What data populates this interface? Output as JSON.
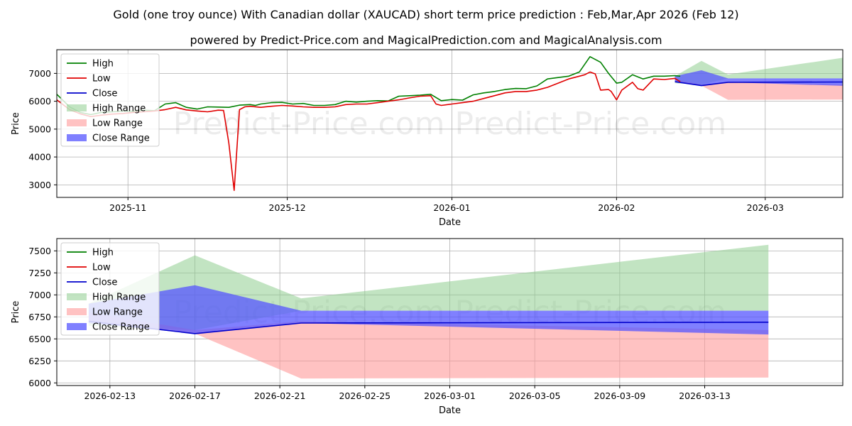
{
  "title": "Gold (one troy ounce) With Canadian dollar (XAUCAD) short term price prediction : Feb,Mar,Apr 2026 (Feb 12)",
  "subtitle": "powered by Predict-Price.com and MagicalPrediction.com and MagicalAnalysis.com",
  "watermark": "Predict-Price.com",
  "colors": {
    "high": "#008000",
    "low": "#e00000",
    "close": "#0000cc",
    "high_range": "#8fce8f",
    "low_range": "#ff9999",
    "close_range": "#5555ff",
    "grid": "#b0b0b0"
  },
  "chart_data": [
    {
      "type": "line",
      "name": "history",
      "xlabel": "Date",
      "ylabel": "Price",
      "x_unit": "days since 2025-10-01",
      "xlim": [
        17.6,
        165.6
      ],
      "ylim": [
        2550,
        7850
      ],
      "grid": true,
      "legend_position": "upper-left",
      "legend": [
        "High",
        "Low",
        "Close",
        "High Range",
        "Low Range",
        "Close Range"
      ],
      "x_ticks": [
        {
          "value": 31,
          "label": "2025-11"
        },
        {
          "value": 61,
          "label": "2025-12"
        },
        {
          "value": 92,
          "label": "2026-01"
        },
        {
          "value": 123,
          "label": "2026-02"
        },
        {
          "value": 151,
          "label": "2026-03"
        }
      ],
      "y_ticks": [
        {
          "value": 3000,
          "label": "3000"
        },
        {
          "value": 4000,
          "label": "4000"
        },
        {
          "value": 5000,
          "label": "5000"
        },
        {
          "value": 6000,
          "label": "6000"
        },
        {
          "value": 7000,
          "label": "7000"
        }
      ],
      "series": [
        {
          "name": "High",
          "x": [
            17.6,
            20,
            22,
            24,
            26,
            28,
            30,
            32,
            34,
            36,
            38,
            40,
            42,
            44,
            46,
            48,
            50,
            52,
            54,
            55,
            56,
            58,
            60,
            62,
            64,
            66,
            68,
            70,
            72,
            74,
            76,
            78,
            80,
            82,
            84,
            86,
            88,
            90,
            92,
            94,
            96,
            98,
            100,
            102,
            104,
            106,
            108,
            110,
            112,
            114,
            116,
            118,
            120,
            121.5,
            123,
            124,
            126,
            128,
            130,
            132,
            134,
            135
          ],
          "values": [
            6250,
            5800,
            5600,
            5520,
            5600,
            5620,
            5650,
            5640,
            5680,
            5660,
            5900,
            5950,
            5780,
            5720,
            5800,
            5790,
            5780,
            5860,
            5880,
            5850,
            5900,
            5950,
            5960,
            5900,
            5920,
            5850,
            5850,
            5880,
            6000,
            5970,
            6000,
            6020,
            6010,
            6180,
            6200,
            6220,
            6250,
            6020,
            6060,
            6040,
            6230,
            6300,
            6350,
            6420,
            6460,
            6450,
            6550,
            6800,
            6850,
            6900,
            7050,
            7600,
            7400,
            7000,
            6650,
            6680,
            6950,
            6800,
            6900,
            6900,
            6920,
            6900
          ]
        },
        {
          "name": "Low",
          "x": [
            17.6,
            20,
            22,
            24,
            26,
            28,
            30,
            32,
            34,
            36,
            38,
            40,
            42,
            44,
            46,
            48,
            49,
            50,
            51,
            52,
            53,
            54,
            56,
            58,
            60,
            62,
            64,
            66,
            68,
            70,
            72,
            74,
            76,
            78,
            80,
            82,
            84,
            86,
            88,
            89,
            90,
            92,
            94,
            96,
            98,
            100,
            102,
            104,
            106,
            108,
            110,
            112,
            114,
            116,
            117,
            118,
            119,
            120,
            121.5,
            122,
            123,
            124,
            126,
            127,
            128,
            130,
            132,
            134,
            135
          ],
          "values": [
            6050,
            5700,
            5550,
            5450,
            5500,
            5540,
            5560,
            5600,
            5620,
            5650,
            5700,
            5780,
            5690,
            5650,
            5620,
            5680,
            5670,
            4500,
            2800,
            5700,
            5800,
            5820,
            5780,
            5820,
            5850,
            5830,
            5800,
            5780,
            5780,
            5800,
            5880,
            5900,
            5900,
            5950,
            6000,
            6050,
            6120,
            6180,
            6200,
            5900,
            5850,
            5900,
            5950,
            6000,
            6100,
            6200,
            6300,
            6350,
            6350,
            6400,
            6500,
            6650,
            6800,
            6900,
            6950,
            7050,
            6980,
            6400,
            6420,
            6350,
            6050,
            6400,
            6680,
            6450,
            6400,
            6800,
            6780,
            6820,
            6700
          ]
        }
      ]
    },
    {
      "type": "line",
      "name": "forecast",
      "xlabel": "Date",
      "ylabel": "Price",
      "x_unit": "days since 2026-02-01",
      "xlim": [
        9.5,
        46.5
      ],
      "ylim": [
        5970,
        7640
      ],
      "grid": true,
      "legend_position": "upper-left",
      "legend": [
        "High",
        "Low",
        "Close",
        "High Range",
        "Low Range",
        "Close Range"
      ],
      "x_ticks": [
        {
          "value": 12,
          "label": "2026-02-13"
        },
        {
          "value": 16,
          "label": "2026-02-17"
        },
        {
          "value": 20,
          "label": "2026-02-21"
        },
        {
          "value": 24,
          "label": "2026-02-25"
        },
        {
          "value": 28,
          "label": "2026-03-01"
        },
        {
          "value": 32,
          "label": "2026-03-05"
        },
        {
          "value": 36,
          "label": "2026-03-09"
        },
        {
          "value": 40,
          "label": "2026-03-13"
        }
      ],
      "y_ticks": [
        {
          "value": 6000,
          "label": "6000"
        },
        {
          "value": 6250,
          "label": "6250"
        },
        {
          "value": 6500,
          "label": "6500"
        },
        {
          "value": 6750,
          "label": "6750"
        },
        {
          "value": 7000,
          "label": "7000"
        },
        {
          "value": 7250,
          "label": "7250"
        },
        {
          "value": 7500,
          "label": "7500"
        }
      ],
      "series": [
        {
          "name": "Close",
          "x": [
            11,
            16,
            21,
            43
          ],
          "values": [
            6700,
            6560,
            6680,
            6690
          ]
        },
        {
          "name": "High Range",
          "x": [
            11,
            16,
            21,
            43
          ],
          "upper": [
            6900,
            7450,
            6960,
            7570
          ],
          "lower": [
            6650,
            6600,
            6820,
            6820
          ]
        },
        {
          "name": "Low Range",
          "x": [
            11,
            16,
            21,
            43
          ],
          "upper": [
            6800,
            6600,
            6700,
            6600
          ],
          "lower": [
            6700,
            6560,
            6050,
            6060
          ]
        },
        {
          "name": "Close Range",
          "x": [
            11,
            16,
            21,
            43
          ],
          "upper": [
            6900,
            7110,
            6820,
            6820
          ],
          "lower": [
            6680,
            6560,
            6680,
            6550
          ]
        }
      ]
    }
  ]
}
